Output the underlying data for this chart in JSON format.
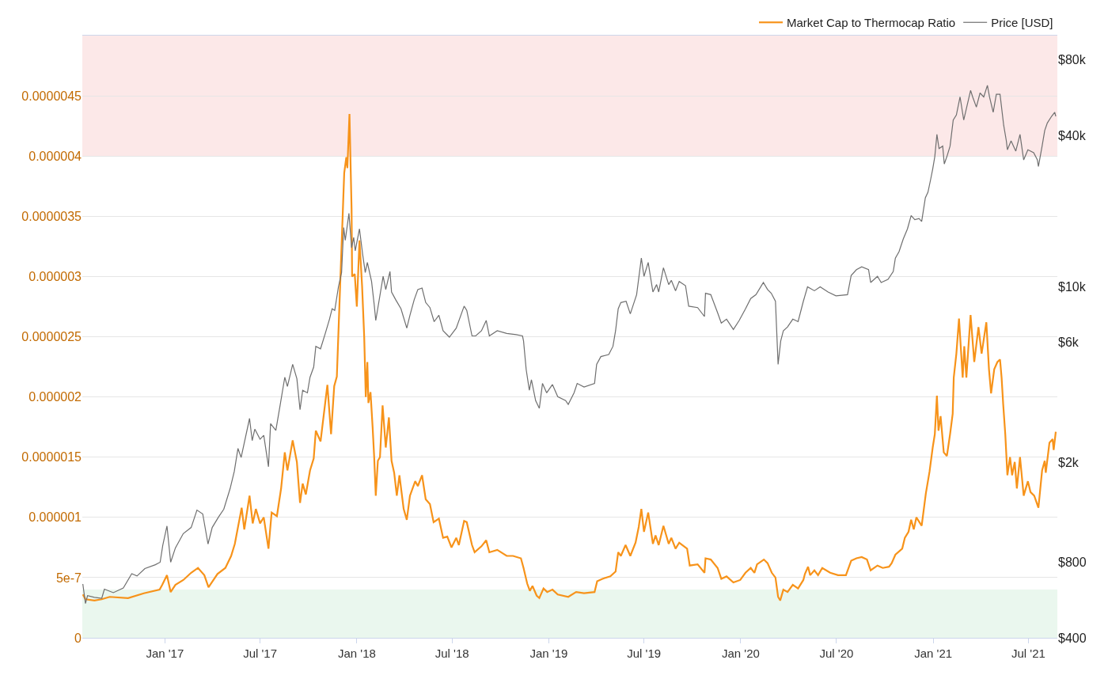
{
  "chart_data": {
    "type": "line",
    "xlim": [
      "2016-07-28",
      "2021-08-25"
    ],
    "xticks": [
      {
        "value": "2017-01-01",
        "label": "Jan '17"
      },
      {
        "value": "2017-07-01",
        "label": "Jul '17"
      },
      {
        "value": "2018-01-01",
        "label": "Jan '18"
      },
      {
        "value": "2018-07-01",
        "label": "Jul '18"
      },
      {
        "value": "2019-01-01",
        "label": "Jan '19"
      },
      {
        "value": "2019-07-01",
        "label": "Jul '19"
      },
      {
        "value": "2020-01-01",
        "label": "Jan '20"
      },
      {
        "value": "2020-07-01",
        "label": "Jul '20"
      },
      {
        "value": "2021-01-01",
        "label": "Jan '21"
      },
      {
        "value": "2021-07-01",
        "label": "Jul '21"
      }
    ],
    "ylim": [
      0,
      5e-06
    ],
    "yticks": [
      0,
      {
        "value": 5e-07,
        "label": "5e-7"
      },
      {
        "value": 1e-06,
        "label": "0.000001"
      },
      {
        "value": 1.5e-06,
        "label": "0.0000015"
      },
      {
        "value": 2e-06,
        "label": "0.000002"
      },
      {
        "value": 2.5e-06,
        "label": "0.0000025"
      },
      {
        "value": 3e-06,
        "label": "0.000003"
      },
      {
        "value": 3.5e-06,
        "label": "0.0000035"
      },
      {
        "value": 4e-06,
        "label": "0.000004"
      },
      {
        "value": 4.5e-06,
        "label": "0.0000045"
      }
    ],
    "y2lim": [
      400,
      100000
    ],
    "y2ticks": [
      {
        "value": 400,
        "label": "$400"
      },
      {
        "value": 800,
        "label": "$800"
      },
      {
        "value": 2000,
        "label": "$2k"
      },
      {
        "value": 6000,
        "label": "$6k"
      },
      {
        "value": 10000,
        "label": "$10k"
      },
      {
        "value": 40000,
        "label": "$40k"
      },
      {
        "value": 80000,
        "label": "$80k"
      }
    ],
    "log": "y2",
    "grid": "y",
    "legend": "top right",
    "bands": [
      {
        "axis": "y",
        "from": 4e-06,
        "to": 5e-06,
        "color": "#fce8e8"
      },
      {
        "axis": "y",
        "from": 0,
        "to": 4e-07,
        "color": "#eaf7ee"
      }
    ],
    "series": [
      {
        "name": "Market Cap to Thermocap Ratio",
        "color": "#f7931a",
        "x": [
          "2016-07-29",
          "2016-08-03",
          "2016-08-20",
          "2016-09-03",
          "2016-09-18",
          "2016-10-23",
          "2016-11-22",
          "2016-12-22",
          "2016-12-27",
          "2017-01-05",
          "2017-01-12",
          "2017-01-21",
          "2017-02-05",
          "2017-02-20",
          "2017-03-05",
          "2017-03-17",
          "2017-03-25",
          "2017-04-11",
          "2017-04-26",
          "2017-05-07",
          "2017-05-14",
          "2017-05-27",
          "2017-06-01",
          "2017-06-11",
          "2017-06-17",
          "2017-06-23",
          "2017-07-01",
          "2017-07-08",
          "2017-07-17",
          "2017-07-23",
          "2017-08-02",
          "2017-08-10",
          "2017-08-17",
          "2017-08-22",
          "2017-09-01",
          "2017-09-09",
          "2017-09-15",
          "2017-09-20",
          "2017-09-26",
          "2017-10-04",
          "2017-10-11",
          "2017-10-15",
          "2017-10-24",
          "2017-11-06",
          "2017-11-13",
          "2017-11-19",
          "2017-11-24",
          "2017-12-08",
          "2017-12-12",
          "2017-12-14",
          "2017-12-18",
          "2017-12-22",
          "2017-12-23",
          "2017-12-28",
          "2018-01-01",
          "2018-01-06",
          "2018-01-11",
          "2018-01-15",
          "2018-01-18",
          "2018-01-21",
          "2018-01-23",
          "2018-01-27",
          "2018-01-31",
          "2018-02-03",
          "2018-02-06",
          "2018-02-10",
          "2018-02-14",
          "2018-02-19",
          "2018-02-25",
          "2018-03-03",
          "2018-03-08",
          "2018-03-13",
          "2018-03-18",
          "2018-03-23",
          "2018-03-31",
          "2018-04-06",
          "2018-04-12",
          "2018-04-22",
          "2018-04-27",
          "2018-05-05",
          "2018-05-12",
          "2018-05-20",
          "2018-05-27",
          "2018-06-06",
          "2018-06-14",
          "2018-06-22",
          "2018-06-30",
          "2018-07-09",
          "2018-07-14",
          "2018-07-24",
          "2018-07-29",
          "2018-08-08",
          "2018-08-13",
          "2018-08-26",
          "2018-09-04",
          "2018-09-10",
          "2018-09-25",
          "2018-10-13",
          "2018-10-25",
          "2018-11-09",
          "2018-11-14",
          "2018-11-21",
          "2018-11-26",
          "2018-12-01",
          "2018-12-09",
          "2018-12-14",
          "2018-12-22",
          "2018-12-29",
          "2019-01-08",
          "2019-01-18",
          "2019-02-07",
          "2019-02-22",
          "2019-03-09",
          "2019-03-29",
          "2019-04-03",
          "2019-04-13",
          "2019-04-28",
          "2019-05-08",
          "2019-05-13",
          "2019-05-18",
          "2019-05-27",
          "2019-06-05",
          "2019-06-15",
          "2019-06-21",
          "2019-06-26",
          "2019-07-01",
          "2019-07-09",
          "2019-07-18",
          "2019-07-23",
          "2019-07-29",
          "2019-08-07",
          "2019-08-17",
          "2019-08-22",
          "2019-08-30",
          "2019-09-06",
          "2019-09-21",
          "2019-09-26",
          "2019-10-11",
          "2019-10-24",
          "2019-10-26",
          "2019-11-05",
          "2019-11-18",
          "2019-11-25",
          "2019-12-05",
          "2019-12-18",
          "2019-12-31",
          "2020-01-10",
          "2020-01-20",
          "2020-01-27",
          "2020-02-01",
          "2020-02-14",
          "2020-02-21",
          "2020-02-29",
          "2020-03-07",
          "2020-03-12",
          "2020-03-16",
          "2020-03-22",
          "2020-03-30",
          "2020-04-09",
          "2020-04-19",
          "2020-04-29",
          "2020-05-02",
          "2020-05-08",
          "2020-05-12",
          "2020-05-20",
          "2020-05-27",
          "2020-06-04",
          "2020-06-19",
          "2020-07-04",
          "2020-07-19",
          "2020-07-29",
          "2020-08-08",
          "2020-08-18",
          "2020-08-28",
          "2020-09-04",
          "2020-09-17",
          "2020-09-27",
          "2020-10-09",
          "2020-10-14",
          "2020-10-21",
          "2020-11-03",
          "2020-11-08",
          "2020-11-15",
          "2020-11-20",
          "2020-11-25",
          "2020-11-30",
          "2020-12-10",
          "2020-12-18",
          "2020-12-25",
          "2020-12-31",
          "2021-01-04",
          "2021-01-08",
          "2021-01-11",
          "2021-01-15",
          "2021-01-21",
          "2021-01-27",
          "2021-02-02",
          "2021-02-07",
          "2021-02-09",
          "2021-02-14",
          "2021-02-19",
          "2021-02-26",
          "2021-03-01",
          "2021-03-05",
          "2021-03-13",
          "2021-03-20",
          "2021-03-28",
          "2021-04-03",
          "2021-04-12",
          "2021-04-17",
          "2021-04-21",
          "2021-04-27",
          "2021-05-03",
          "2021-05-08",
          "2021-05-11",
          "2021-05-14",
          "2021-05-18",
          "2021-05-22",
          "2021-05-27",
          "2021-05-31",
          "2021-06-05",
          "2021-06-09",
          "2021-06-15",
          "2021-06-22",
          "2021-06-30",
          "2021-07-05",
          "2021-07-12",
          "2021-07-20",
          "2021-07-27",
          "2021-08-01",
          "2021-08-03",
          "2021-08-10",
          "2021-08-16",
          "2021-08-18",
          "2021-08-22"
        ],
        "values": [
          3.6e-07,
          3.2e-07,
          3.1e-07,
          3.2e-07,
          3.4e-07,
          3.3e-07,
          3.7e-07,
          4e-07,
          4.4e-07,
          5.2e-07,
          3.8e-07,
          4.4e-07,
          4.8e-07,
          5.4e-07,
          5.8e-07,
          5.2e-07,
          4.2e-07,
          5.3e-07,
          5.8e-07,
          6.8e-07,
          7.8e-07,
          1.08e-06,
          9e-07,
          1.18e-06,
          9.5e-07,
          1.07e-06,
          9.5e-07,
          1e-06,
          7.4e-07,
          1.04e-06,
          1.01e-06,
          1.24e-06,
          1.54e-06,
          1.39e-06,
          1.64e-06,
          1.46e-06,
          1.12e-06,
          1.28e-06,
          1.19e-06,
          1.39e-06,
          1.49e-06,
          1.72e-06,
          1.63e-06,
          2.1e-06,
          1.69e-06,
          2.09e-06,
          2.17e-06,
          3.86e-06,
          3.99e-06,
          3.9e-06,
          4.35e-06,
          3.56e-06,
          3e-06,
          3.02e-06,
          2.75e-06,
          3.3e-06,
          2.92e-06,
          2.5e-06,
          2e-06,
          2.29e-06,
          1.95e-06,
          2.04e-06,
          1.75e-06,
          1.5e-06,
          1.18e-06,
          1.47e-06,
          1.5e-06,
          1.93e-06,
          1.58e-06,
          1.83e-06,
          1.47e-06,
          1.37e-06,
          1.18e-06,
          1.35e-06,
          1.07e-06,
          9.8e-07,
          1.18e-06,
          1.3e-06,
          1.26e-06,
          1.35e-06,
          1.15e-06,
          1.11e-06,
          9.6e-07,
          9.9e-07,
          8.3e-07,
          8.4e-07,
          7.5e-07,
          8.3e-07,
          7.7e-07,
          9.7e-07,
          9.6e-07,
          7.7e-07,
          7.1e-07,
          7.6e-07,
          8.1e-07,
          7.1e-07,
          7.3e-07,
          6.8e-07,
          6.8e-07,
          6.6e-07,
          5.8e-07,
          4.5e-07,
          3.9e-07,
          4.3e-07,
          3.5e-07,
          3.3e-07,
          4.1e-07,
          3.8e-07,
          4e-07,
          3.6e-07,
          3.4e-07,
          3.8e-07,
          3.7e-07,
          3.8e-07,
          4.7e-07,
          4.9e-07,
          5.1e-07,
          5.5e-07,
          7.1e-07,
          6.8e-07,
          7.7e-07,
          6.8e-07,
          7.9e-07,
          9.2e-07,
          1.07e-06,
          8.8e-07,
          1.04e-06,
          7.8e-07,
          8.5e-07,
          7.7e-07,
          9.3e-07,
          7.8e-07,
          8.3e-07,
          7.4e-07,
          7.9e-07,
          7.4e-07,
          6e-07,
          6.1e-07,
          5.4e-07,
          6.6e-07,
          6.5e-07,
          5.8e-07,
          4.9e-07,
          5.1e-07,
          4.6e-07,
          4.8e-07,
          5.4e-07,
          5.8e-07,
          5.4e-07,
          6.1e-07,
          6.5e-07,
          6.2e-07,
          5.4e-07,
          5e-07,
          3.4e-07,
          3.1e-07,
          4e-07,
          3.8e-07,
          4.4e-07,
          4.1e-07,
          4.8e-07,
          5.3e-07,
          5.9e-07,
          5.2e-07,
          5.6e-07,
          5.2e-07,
          5.8e-07,
          5.4e-07,
          5.2e-07,
          5.2e-07,
          6.4e-07,
          6.6e-07,
          6.7e-07,
          6.5e-07,
          5.6e-07,
          6e-07,
          5.8e-07,
          5.9e-07,
          6.2e-07,
          6.9e-07,
          7.4e-07,
          8.3e-07,
          8.8e-07,
          9.8e-07,
          9e-07,
          1e-06,
          9.3e-07,
          1.2e-06,
          1.38e-06,
          1.58e-06,
          1.69e-06,
          2.01e-06,
          1.72e-06,
          1.84e-06,
          1.54e-06,
          1.51e-06,
          1.69e-06,
          1.86e-06,
          2.16e-06,
          2.36e-06,
          2.65e-06,
          2.16e-06,
          2.42e-06,
          2.16e-06,
          2.68e-06,
          2.29e-06,
          2.58e-06,
          2.36e-06,
          2.62e-06,
          2.23e-06,
          2.03e-06,
          2.23e-06,
          2.29e-06,
          2.31e-06,
          2.16e-06,
          1.94e-06,
          1.69e-06,
          1.35e-06,
          1.5e-06,
          1.35e-06,
          1.46e-06,
          1.24e-06,
          1.5e-06,
          1.18e-06,
          1.3e-06,
          1.21e-06,
          1.18e-06,
          1.08e-06,
          1.39e-06,
          1.47e-06,
          1.37e-06,
          1.62e-06,
          1.65e-06,
          1.56e-06,
          1.71e-06
        ]
      },
      {
        "name": "Price [USD]",
        "color": "#6f6f6f",
        "axis": "y2",
        "x": [
          "2016-07-29",
          "2016-08-03",
          "2016-08-07",
          "2016-08-20",
          "2016-09-03",
          "2016-09-08",
          "2016-09-25",
          "2016-10-14",
          "2016-10-30",
          "2016-11-09",
          "2016-11-24",
          "2016-12-14",
          "2016-12-23",
          "2016-12-28",
          "2017-01-05",
          "2017-01-12",
          "2017-01-21",
          "2017-02-05",
          "2017-02-20",
          "2017-03-03",
          "2017-03-14",
          "2017-03-24",
          "2017-04-01",
          "2017-04-13",
          "2017-04-23",
          "2017-05-05",
          "2017-05-13",
          "2017-05-20",
          "2017-05-26",
          "2017-06-11",
          "2017-06-16",
          "2017-06-21",
          "2017-07-01",
          "2017-07-08",
          "2017-07-17",
          "2017-07-21",
          "2017-07-31",
          "2017-08-08",
          "2017-08-17",
          "2017-08-22",
          "2017-09-01",
          "2017-09-09",
          "2017-09-15",
          "2017-09-20",
          "2017-09-29",
          "2017-10-04",
          "2017-10-11",
          "2017-10-15",
          "2017-10-24",
          "2017-11-02",
          "2017-11-10",
          "2017-11-15",
          "2017-11-20",
          "2017-11-27",
          "2017-12-03",
          "2017-12-07",
          "2017-12-10",
          "2017-12-17",
          "2017-12-22",
          "2017-12-26",
          "2017-12-29",
          "2018-01-06",
          "2018-01-12",
          "2018-01-17",
          "2018-01-21",
          "2018-01-29",
          "2018-02-03",
          "2018-02-06",
          "2018-02-20",
          "2018-02-25",
          "2018-03-05",
          "2018-03-08",
          "2018-03-16",
          "2018-03-26",
          "2018-04-06",
          "2018-04-12",
          "2018-04-20",
          "2018-04-27",
          "2018-05-05",
          "2018-05-12",
          "2018-05-20",
          "2018-05-28",
          "2018-06-06",
          "2018-06-14",
          "2018-06-26",
          "2018-07-09",
          "2018-07-24",
          "2018-07-29",
          "2018-08-08",
          "2018-08-15",
          "2018-08-26",
          "2018-09-04",
          "2018-09-10",
          "2018-09-25",
          "2018-10-13",
          "2018-10-31",
          "2018-11-12",
          "2018-11-14",
          "2018-11-19",
          "2018-11-25",
          "2018-11-29",
          "2018-12-07",
          "2018-12-14",
          "2018-12-20",
          "2018-12-28",
          "2019-01-08",
          "2019-01-18",
          "2019-02-02",
          "2019-02-07",
          "2019-02-18",
          "2019-02-24",
          "2019-03-09",
          "2019-03-29",
          "2019-04-02",
          "2019-04-10",
          "2019-04-25",
          "2019-05-03",
          "2019-05-08",
          "2019-05-13",
          "2019-05-18",
          "2019-05-28",
          "2019-06-05",
          "2019-06-17",
          "2019-06-26",
          "2019-07-01",
          "2019-07-09",
          "2019-07-18",
          "2019-07-25",
          "2019-07-29",
          "2019-08-07",
          "2019-08-17",
          "2019-08-22",
          "2019-08-30",
          "2019-09-06",
          "2019-09-18",
          "2019-09-24",
          "2019-10-11",
          "2019-10-24",
          "2019-10-26",
          "2019-11-05",
          "2019-11-18",
          "2019-11-25",
          "2019-12-05",
          "2019-12-18",
          "2019-12-29",
          "2020-01-10",
          "2020-01-20",
          "2020-01-30",
          "2020-02-13",
          "2020-02-21",
          "2020-02-28",
          "2020-03-07",
          "2020-03-12",
          "2020-03-17",
          "2020-03-22",
          "2020-03-30",
          "2020-04-09",
          "2020-04-19",
          "2020-04-29",
          "2020-05-07",
          "2020-05-20",
          "2020-05-31",
          "2020-06-15",
          "2020-06-30",
          "2020-07-22",
          "2020-07-29",
          "2020-08-08",
          "2020-08-18",
          "2020-08-31",
          "2020-09-04",
          "2020-09-17",
          "2020-09-24",
          "2020-10-07",
          "2020-10-17",
          "2020-10-21",
          "2020-10-28",
          "2020-11-05",
          "2020-11-13",
          "2020-11-20",
          "2020-11-27",
          "2020-12-05",
          "2020-12-10",
          "2020-12-17",
          "2020-12-22",
          "2020-12-27",
          "2020-12-31",
          "2021-01-04",
          "2021-01-08",
          "2021-01-12",
          "2021-01-19",
          "2021-01-22",
          "2021-01-27",
          "2021-02-02",
          "2021-02-08",
          "2021-02-14",
          "2021-02-21",
          "2021-02-28",
          "2021-03-13",
          "2021-03-17",
          "2021-03-24",
          "2021-03-31",
          "2021-04-07",
          "2021-04-14",
          "2021-04-18",
          "2021-04-25",
          "2021-05-01",
          "2021-05-08",
          "2021-05-15",
          "2021-05-20",
          "2021-05-22",
          "2021-05-29",
          "2021-06-07",
          "2021-06-15",
          "2021-06-22",
          "2021-06-30",
          "2021-07-11",
          "2021-07-18",
          "2021-07-20",
          "2021-07-27",
          "2021-08-01",
          "2021-08-06",
          "2021-08-14",
          "2021-08-20",
          "2021-08-22"
        ],
        "values": [
          655,
          548,
          589,
          580,
          575,
          625,
          605,
          632,
          720,
          705,
          755,
          782,
          800,
          934,
          1115,
          800,
          912,
          1040,
          1100,
          1290,
          1245,
          945,
          1100,
          1210,
          1300,
          1570,
          1840,
          2270,
          2090,
          2990,
          2440,
          2710,
          2470,
          2560,
          1920,
          2850,
          2680,
          3360,
          4360,
          4010,
          4910,
          4300,
          3240,
          3870,
          3780,
          4360,
          4790,
          5790,
          5660,
          6520,
          7430,
          8170,
          8050,
          9990,
          11400,
          17200,
          15300,
          19600,
          14300,
          15700,
          13900,
          17000,
          13500,
          11400,
          12500,
          10500,
          8500,
          7340,
          11000,
          9750,
          11500,
          9530,
          8870,
          8170,
          6840,
          7700,
          8870,
          9750,
          9880,
          8650,
          8260,
          7260,
          7700,
          6680,
          6300,
          6840,
          8370,
          8050,
          6370,
          6370,
          6680,
          7340,
          6370,
          6680,
          6520,
          6450,
          6370,
          6080,
          4680,
          3870,
          4260,
          3520,
          3280,
          4120,
          3780,
          4080,
          3650,
          3520,
          3400,
          3780,
          4120,
          3990,
          4120,
          4910,
          5270,
          5370,
          5790,
          6680,
          8170,
          8650,
          8750,
          7800,
          9300,
          13000,
          11000,
          12500,
          9530,
          10200,
          9530,
          11900,
          10200,
          10600,
          9640,
          10500,
          10100,
          8370,
          8260,
          7610,
          9420,
          9300,
          7880,
          7170,
          7430,
          6760,
          7340,
          8170,
          8980,
          9300,
          10400,
          9750,
          9420,
          8750,
          4910,
          6080,
          6680,
          6920,
          7430,
          7260,
          8750,
          9990,
          9640,
          9990,
          9530,
          9200,
          9300,
          11100,
          11700,
          12000,
          11700,
          10400,
          11000,
          10400,
          10700,
          11500,
          13000,
          13800,
          15500,
          17000,
          19200,
          18500,
          18700,
          18200,
          22600,
          23800,
          26700,
          29400,
          33000,
          40400,
          35500,
          36300,
          30800,
          33000,
          36300,
          46100,
          48300,
          57000,
          46100,
          60500,
          57000,
          51900,
          59100,
          57000,
          63400,
          57000,
          49500,
          58400,
          58400,
          43900,
          38100,
          35100,
          38100,
          34700,
          40400,
          32000,
          35100,
          34200,
          32000,
          30100,
          36300,
          41900,
          44900,
          47700,
          49500,
          47700
        ]
      }
    ]
  }
}
